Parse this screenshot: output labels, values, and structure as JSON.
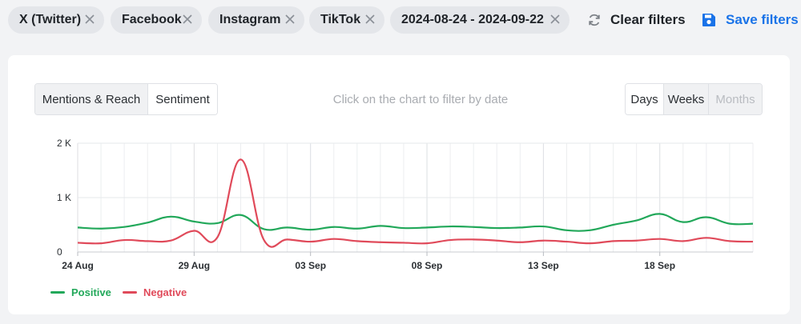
{
  "filters": {
    "chips": [
      {
        "label": "X (Twitter)"
      },
      {
        "label": "Facebook"
      },
      {
        "label": "Instagram"
      },
      {
        "label": "TikTok"
      },
      {
        "label": "2024-08-24 - 2024-09-22"
      }
    ],
    "clear_label": "Clear filters",
    "save_label": "Save filters"
  },
  "panel": {
    "view_tabs": [
      "Mentions & Reach",
      "Sentiment"
    ],
    "active_view": "Sentiment",
    "hint": "Click on the chart to filter by date",
    "period_tabs": [
      "Days",
      "Weeks",
      "Months"
    ],
    "active_period": "Days",
    "disabled_period": "Months"
  },
  "colors": {
    "positive": "#22a85a",
    "negative": "#e04a5a",
    "accent": "#1a73e8"
  },
  "chart_data": {
    "type": "line",
    "x_start": "2024-08-24",
    "x_tick_labels": [
      "24 Aug",
      "29 Aug",
      "03 Sep",
      "08 Sep",
      "13 Sep",
      "18 Sep"
    ],
    "y_tick_labels": [
      "0",
      "1 K",
      "2 K"
    ],
    "ylim": [
      0,
      2000
    ],
    "grid": true,
    "legend_position": "bottom-left",
    "x": [
      "2024-08-24",
      "2024-08-25",
      "2024-08-26",
      "2024-08-27",
      "2024-08-28",
      "2024-08-29",
      "2024-08-30",
      "2024-08-31",
      "2024-09-01",
      "2024-09-02",
      "2024-09-03",
      "2024-09-04",
      "2024-09-05",
      "2024-09-06",
      "2024-09-07",
      "2024-09-08",
      "2024-09-09",
      "2024-09-10",
      "2024-09-11",
      "2024-09-12",
      "2024-09-13",
      "2024-09-14",
      "2024-09-15",
      "2024-09-16",
      "2024-09-17",
      "2024-09-18",
      "2024-09-19",
      "2024-09-20",
      "2024-09-21",
      "2024-09-22"
    ],
    "series": [
      {
        "name": "Positive",
        "values": [
          450,
          430,
          460,
          540,
          650,
          560,
          530,
          680,
          420,
          450,
          410,
          460,
          430,
          480,
          440,
          450,
          470,
          460,
          440,
          450,
          470,
          400,
          400,
          500,
          580,
          700,
          550,
          640,
          520,
          520
        ]
      },
      {
        "name": "Negative",
        "values": [
          170,
          160,
          220,
          200,
          210,
          390,
          270,
          1700,
          220,
          230,
          190,
          240,
          200,
          180,
          170,
          160,
          220,
          230,
          210,
          180,
          210,
          190,
          160,
          200,
          210,
          240,
          200,
          260,
          200,
          190
        ]
      }
    ]
  }
}
